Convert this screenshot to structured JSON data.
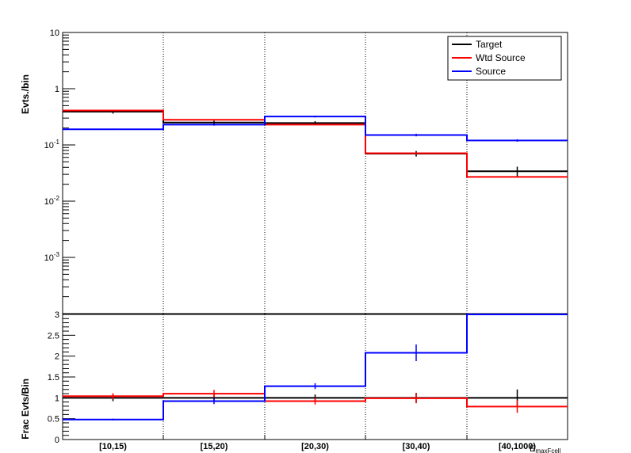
{
  "chart_data": [
    {
      "type": "line",
      "panel": "top",
      "ylabel": "Evts./bin",
      "yscale": "log",
      "ylim": [
        0.0001,
        10
      ],
      "yticks": [
        {
          "value": 10,
          "label": "10",
          "sup": ""
        },
        {
          "value": 1,
          "label": "1",
          "sup": ""
        },
        {
          "value": 0.1,
          "label": "10",
          "sup": "-1"
        },
        {
          "value": 0.01,
          "label": "10",
          "sup": "-2"
        },
        {
          "value": 0.001,
          "label": "10",
          "sup": "-3"
        }
      ],
      "categories": [
        "[10,15)",
        "[15,20)",
        "[20,30)",
        "[30,40)",
        "[40,1000)"
      ],
      "legend": {
        "position": "top-right",
        "entries": [
          "Target",
          "Wtd Source",
          "Source"
        ]
      },
      "series": [
        {
          "name": "Target",
          "color": "#000000",
          "values": [
            0.39,
            0.25,
            0.245,
            0.07,
            0.034
          ],
          "errors": [
            0.03,
            0.02,
            0.02,
            0.008,
            0.007
          ]
        },
        {
          "name": "Wtd Source",
          "color": "#ff0000",
          "values": [
            0.41,
            0.28,
            0.23,
            0.071,
            0.027
          ],
          "errors": [
            0.0,
            0.0,
            0.0,
            0.0,
            0.0
          ]
        },
        {
          "name": "Source",
          "color": "#0000ff",
          "values": [
            0.19,
            0.23,
            0.32,
            0.15,
            0.12
          ],
          "errors": [
            0.005,
            0.01,
            0.012,
            0.008,
            0.006
          ]
        }
      ]
    },
    {
      "type": "line",
      "panel": "bottom",
      "ylabel": "Frac Evts/Bin",
      "ylim": [
        0,
        3
      ],
      "yticks": [
        {
          "value": 0,
          "label": "0"
        },
        {
          "value": 0.5,
          "label": "0.5"
        },
        {
          "value": 1,
          "label": "1"
        },
        {
          "value": 1.5,
          "label": "1.5"
        },
        {
          "value": 2,
          "label": "2"
        },
        {
          "value": 2.5,
          "label": "2.5"
        },
        {
          "value": 3,
          "label": "3"
        }
      ],
      "xlabel": "E",
      "xlabel_sub": "maxFcell",
      "categories": [
        "[10,15)",
        "[15,20)",
        "[20,30)",
        "[30,40)",
        "[40,1000)"
      ],
      "series": [
        {
          "name": "Target",
          "color": "#000000",
          "values": [
            1.0,
            1.0,
            1.0,
            1.0,
            1.0
          ],
          "errors": [
            0.08,
            0.08,
            0.08,
            0.12,
            0.2
          ]
        },
        {
          "name": "Wtd Source",
          "color": "#ff0000",
          "values": [
            1.04,
            1.1,
            0.92,
            0.99,
            0.79
          ],
          "errors": [
            0.07,
            0.09,
            0.08,
            0.12,
            0.15
          ]
        },
        {
          "name": "Source",
          "color": "#0000ff",
          "values": [
            0.48,
            0.92,
            1.28,
            2.08,
            3.0
          ],
          "errors": [
            0.02,
            0.07,
            0.07,
            0.2,
            0.0
          ]
        }
      ]
    }
  ]
}
